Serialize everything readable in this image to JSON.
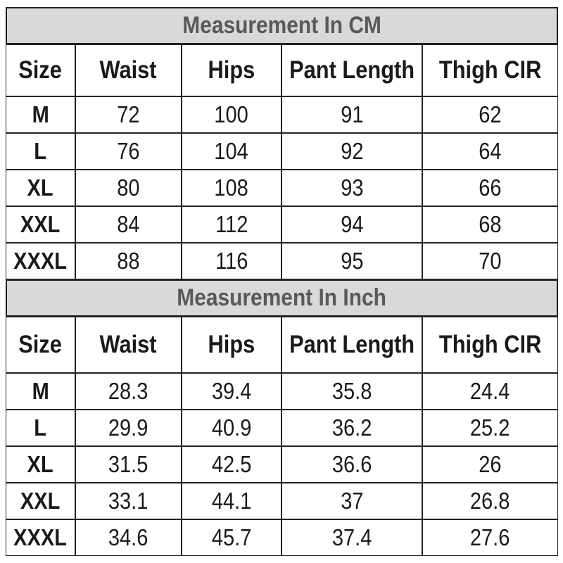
{
  "tables": [
    {
      "title": "Measurement In CM",
      "header": [
        "Size",
        "Waist",
        "Hips",
        "Pant Length",
        "Thigh CIR"
      ],
      "rows": [
        [
          "M",
          72,
          100,
          91,
          62
        ],
        [
          "L",
          76,
          104,
          92,
          64
        ],
        [
          "XL",
          80,
          108,
          93,
          66
        ],
        [
          "XXL",
          84,
          112,
          94,
          68
        ],
        [
          "XXXL",
          88,
          116,
          95,
          70
        ]
      ]
    },
    {
      "title": "Measurement In Inch",
      "header": [
        "Size",
        "Waist",
        "Hips",
        "Pant Length",
        "Thigh CIR"
      ],
      "rows": [
        [
          "M",
          28.3,
          39.4,
          35.8,
          24.4
        ],
        [
          "L",
          29.9,
          40.9,
          36.2,
          25.2
        ],
        [
          "XL",
          31.5,
          42.5,
          36.6,
          26
        ],
        [
          "XXL",
          33.1,
          44.1,
          37,
          26.8
        ],
        [
          "XXXL",
          34.6,
          45.7,
          37.4,
          27.6
        ]
      ]
    }
  ]
}
